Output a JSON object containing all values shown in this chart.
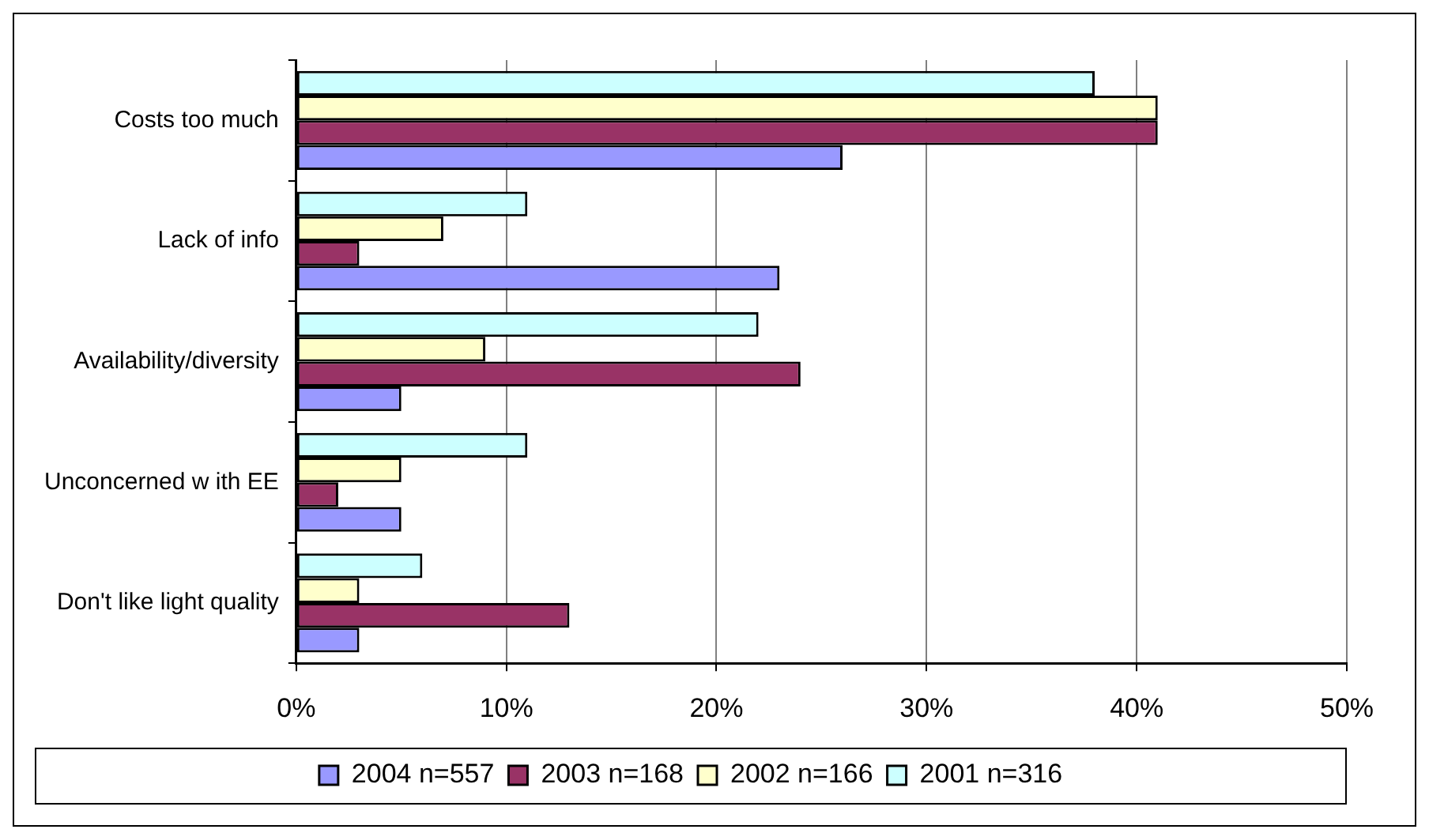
{
  "chart_data": {
    "type": "bar",
    "orientation": "horizontal",
    "categories": [
      "Costs too much",
      "Lack of info",
      "Availability/diversity",
      "Unconcerned w ith EE",
      "Don't like light quality"
    ],
    "series": [
      {
        "name": "2001 n=316",
        "color": "#ccffff",
        "values": [
          38,
          11,
          22,
          11,
          6
        ]
      },
      {
        "name": "2002 n=166",
        "color": "#ffffcc",
        "values": [
          41,
          7,
          9,
          5,
          3
        ]
      },
      {
        "name": "2003 n=168",
        "color": "#993366",
        "values": [
          41,
          3,
          24,
          2,
          13
        ]
      },
      {
        "name": "2004 n=557",
        "color": "#9999ff",
        "values": [
          26,
          23,
          5,
          5,
          3
        ]
      }
    ],
    "xlim": [
      0,
      50
    ],
    "xticks": [
      {
        "value": 0,
        "label": "0%"
      },
      {
        "value": 10,
        "label": "10%"
      },
      {
        "value": 20,
        "label": "20%"
      },
      {
        "value": 30,
        "label": "30%"
      },
      {
        "value": 40,
        "label": "40%"
      },
      {
        "value": 50,
        "label": "50%"
      }
    ],
    "grid": "x",
    "legend": "bottom"
  }
}
